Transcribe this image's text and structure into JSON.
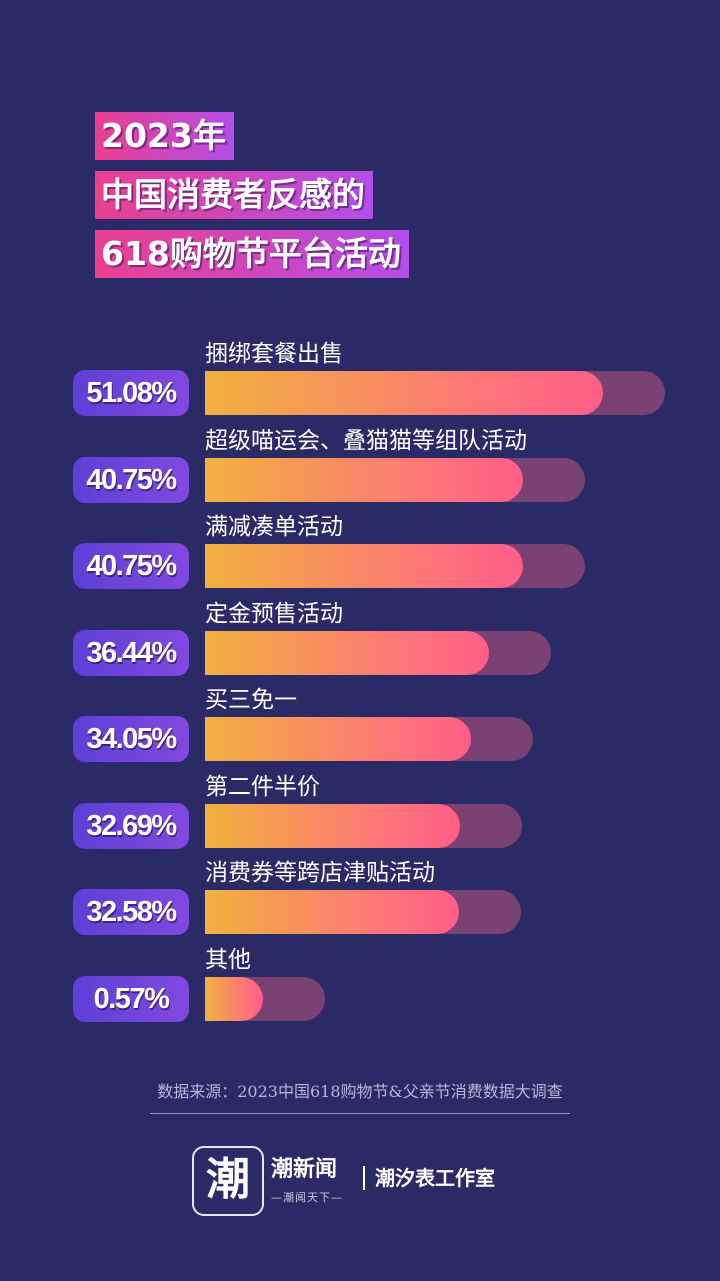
{
  "title_lines": [
    "2023年",
    "中国消费者反感的",
    "618购物节平台活动"
  ],
  "chart_data": {
    "type": "bar",
    "orientation": "horizontal",
    "title": "2023年中国消费者反感的618购物节平台活动",
    "categories": [
      "捆绑套餐出售",
      "超级喵运会、叠猫猫等组队活动",
      "满减凑单活动",
      "定金预售活动",
      "买三免一",
      "第二件半价",
      "消费券等跨店津贴活动",
      "其他"
    ],
    "values": [
      51.08,
      40.75,
      40.75,
      36.44,
      34.05,
      32.69,
      32.58,
      0.57
    ],
    "value_labels": [
      "51.08%",
      "40.75%",
      "40.75%",
      "36.44%",
      "34.05%",
      "32.69%",
      "32.58%",
      "0.57%"
    ],
    "unit": "%",
    "colors": {
      "fill_start": "#f0b13e",
      "fill_end": "#ff5e86",
      "track": "#7a4272",
      "pill": "#6a44dc"
    }
  },
  "source": "数据来源：2023中国618购物节&父亲节消费数据大调查",
  "footer": {
    "logo_glyph": "潮",
    "brand": "潮新闻",
    "brand_sub": "—潮闻天下—",
    "studio": "潮汐表工作室"
  },
  "colors": {
    "background": "#2a2b66",
    "title_start": "#ea3f8f",
    "title_end": "#b34ee8"
  }
}
